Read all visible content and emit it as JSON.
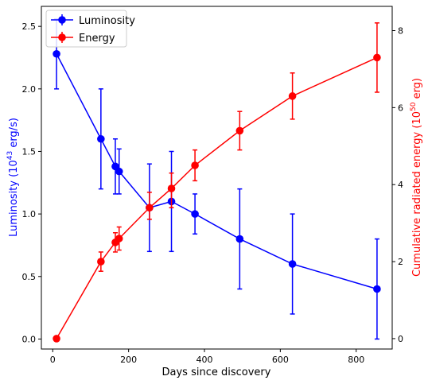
{
  "chart_data": {
    "type": "line",
    "xlabel": "Days since discovery",
    "ylabel_left": {
      "main": "Luminosity (10",
      "exp": "43",
      "tail": " erg/s)"
    },
    "ylabel_right": {
      "main": "Cumulative radiated energy (10",
      "exp": "50",
      "tail": " erg)"
    },
    "xlim": [
      -30,
      895
    ],
    "ylim_left": [
      -0.08,
      2.66
    ],
    "ylim_right": [
      -0.27,
      8.63
    ],
    "x_ticks": [
      "0",
      "200",
      "400",
      "600",
      "800"
    ],
    "y_left_ticks": [
      "0.0",
      "0.5",
      "1.0",
      "1.5",
      "2.0",
      "2.5"
    ],
    "y_right_ticks": [
      "0",
      "2",
      "4",
      "6",
      "8"
    ],
    "grid": false,
    "legend_position": "top-left",
    "series": [
      {
        "name": "Luminosity",
        "axis": "left",
        "color": "#0000ff",
        "points": [
          {
            "x": 10,
            "y": 2.28,
            "err_low": 0.28,
            "err_high": 0.28
          },
          {
            "x": 127,
            "y": 1.6,
            "err_low": 0.4,
            "err_high": 0.4
          },
          {
            "x": 165,
            "y": 1.38,
            "err_low": 0.22,
            "err_high": 0.22
          },
          {
            "x": 175,
            "y": 1.34,
            "err_low": 0.18,
            "err_high": 0.18
          },
          {
            "x": 255,
            "y": 1.05,
            "err_low": 0.35,
            "err_high": 0.35
          },
          {
            "x": 313,
            "y": 1.1,
            "err_low": 0.4,
            "err_high": 0.4
          },
          {
            "x": 375,
            "y": 1.0,
            "err_low": 0.16,
            "err_high": 0.16
          },
          {
            "x": 493,
            "y": 0.8,
            "err_low": 0.4,
            "err_high": 0.4
          },
          {
            "x": 632,
            "y": 0.6,
            "err_low": 0.4,
            "err_high": 0.4
          },
          {
            "x": 855,
            "y": 0.4,
            "err_low": 0.4,
            "err_high": 0.4
          }
        ]
      },
      {
        "name": "Energy",
        "axis": "right",
        "color": "#ff0000",
        "points": [
          {
            "x": 10,
            "y": 0.0,
            "err_low": 0.0,
            "err_high": 0.0
          },
          {
            "x": 127,
            "y": 2.0,
            "err_low": 0.25,
            "err_high": 0.25
          },
          {
            "x": 165,
            "y": 2.5,
            "err_low": 0.25,
            "err_high": 0.25
          },
          {
            "x": 175,
            "y": 2.6,
            "err_low": 0.3,
            "err_high": 0.3
          },
          {
            "x": 255,
            "y": 3.4,
            "err_low": 0.3,
            "err_high": 0.4
          },
          {
            "x": 313,
            "y": 3.9,
            "err_low": 0.5,
            "err_high": 0.4
          },
          {
            "x": 375,
            "y": 4.5,
            "err_low": 0.4,
            "err_high": 0.4
          },
          {
            "x": 493,
            "y": 5.4,
            "err_low": 0.5,
            "err_high": 0.5
          },
          {
            "x": 632,
            "y": 6.3,
            "err_low": 0.6,
            "err_high": 0.6
          },
          {
            "x": 855,
            "y": 7.3,
            "err_low": 0.9,
            "err_high": 0.9
          }
        ]
      }
    ]
  }
}
